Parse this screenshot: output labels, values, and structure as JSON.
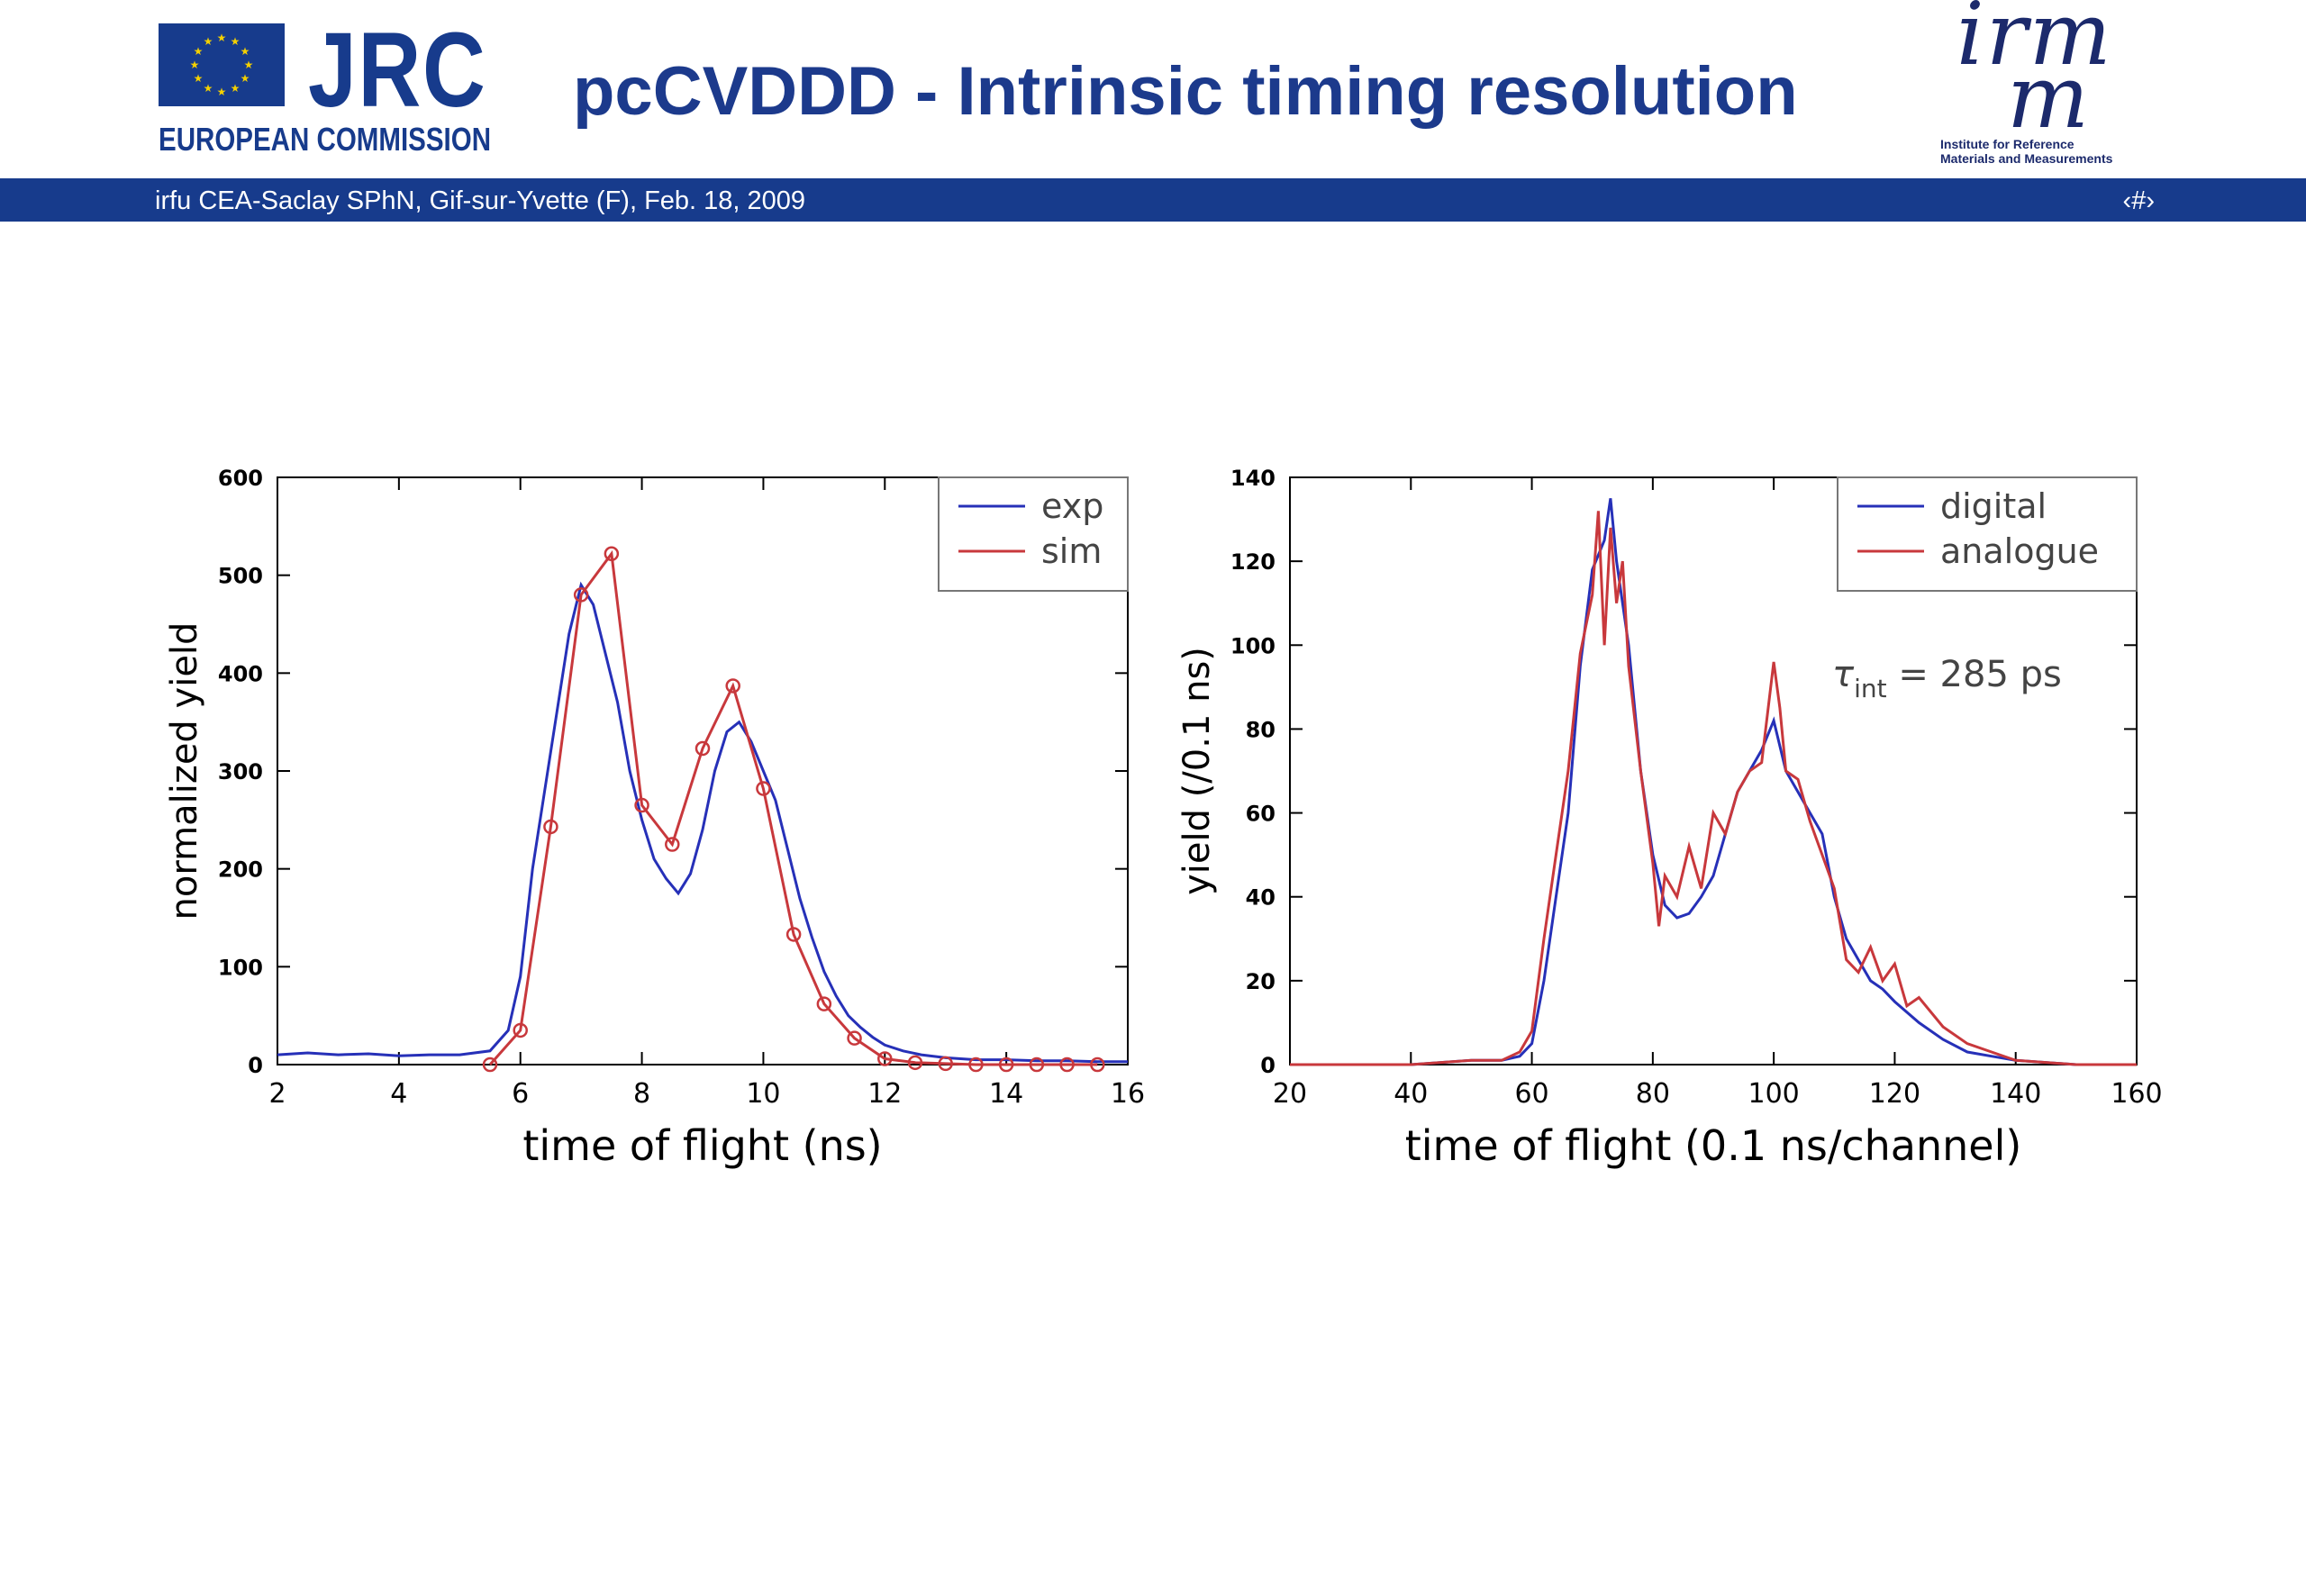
{
  "header": {
    "title": "pcCVDDD - Intrinsic timing resolution",
    "left_logo": {
      "name": "JRC",
      "subtitle": "EUROPEAN COMMISSION"
    },
    "right_logo": {
      "name": "irmm",
      "subtitle_line1": "Institute for Reference",
      "subtitle_line2": "Materials and Measurements"
    }
  },
  "footer_band": {
    "text": "irfu CEA-Saclay SPhN, Gif-sur-Yvette (F), Feb. 18, 2009",
    "page": "‹#›"
  },
  "colors": {
    "brand_blue": "#173b8c",
    "series_blue": "#2630b8",
    "series_red": "#c8383c"
  },
  "chart_data": [
    {
      "type": "line",
      "xlabel": "time of flight (ns)",
      "ylabel": "normalized yield",
      "xlim": [
        2,
        16
      ],
      "ylim": [
        0,
        600
      ],
      "xticks": [
        2,
        4,
        6,
        8,
        10,
        12,
        14,
        16
      ],
      "yticks": [
        0,
        100,
        200,
        300,
        400,
        500,
        600
      ],
      "legend_position": "top-right",
      "series": [
        {
          "name": "exp",
          "color": "#2630b8",
          "x": [
            2,
            2.5,
            3,
            3.5,
            4,
            4.5,
            5,
            5.5,
            5.8,
            6,
            6.2,
            6.4,
            6.6,
            6.8,
            7,
            7.2,
            7.4,
            7.6,
            7.8,
            8,
            8.2,
            8.4,
            8.6,
            8.8,
            9,
            9.2,
            9.4,
            9.6,
            9.8,
            10,
            10.2,
            10.4,
            10.6,
            10.8,
            11,
            11.2,
            11.4,
            11.6,
            11.8,
            12,
            12.3,
            12.6,
            13,
            13.5,
            14,
            14.5,
            15,
            15.5,
            16
          ],
          "y": [
            10,
            12,
            10,
            11,
            9,
            10,
            10,
            14,
            35,
            90,
            200,
            280,
            360,
            440,
            490,
            470,
            420,
            370,
            300,
            250,
            210,
            190,
            175,
            195,
            240,
            300,
            340,
            350,
            330,
            300,
            270,
            220,
            170,
            130,
            95,
            70,
            50,
            38,
            28,
            20,
            14,
            10,
            7,
            5,
            5,
            4,
            4,
            3,
            3
          ]
        },
        {
          "name": "sim",
          "color": "#c8383c",
          "x": [
            5.5,
            6,
            6.5,
            7,
            7.5,
            8,
            8.5,
            9,
            9.5,
            10,
            10.5,
            11,
            11.5,
            12,
            12.5,
            13,
            13.5,
            14,
            14.5,
            15,
            15.5
          ],
          "y": [
            0,
            35,
            243,
            480,
            522,
            265,
            225,
            323,
            387,
            282,
            133,
            62,
            27,
            6,
            2,
            1,
            0,
            0,
            0,
            0,
            0
          ]
        }
      ]
    },
    {
      "type": "line",
      "xlabel": "time of flight (0.1 ns/channel)",
      "ylabel": "yield (/0.1 ns)",
      "xlim": [
        20,
        160
      ],
      "ylim": [
        0,
        140
      ],
      "xticks": [
        20,
        40,
        60,
        80,
        100,
        120,
        140,
        160
      ],
      "yticks": [
        0,
        20,
        40,
        60,
        80,
        100,
        120,
        140
      ],
      "legend_position": "top-right",
      "annotation": {
        "symbol": "τ",
        "subscript": "int",
        "text": " = 285 ps"
      },
      "series": [
        {
          "name": "digital",
          "color": "#2630b8",
          "x": [
            20,
            30,
            40,
            50,
            55,
            58,
            60,
            62,
            64,
            66,
            68,
            70,
            72,
            73,
            74,
            76,
            78,
            80,
            82,
            84,
            86,
            88,
            90,
            92,
            94,
            96,
            98,
            100,
            102,
            104,
            106,
            108,
            110,
            112,
            114,
            116,
            118,
            120,
            124,
            128,
            132,
            136,
            140,
            150,
            160
          ],
          "y": [
            0,
            0,
            0,
            1,
            1,
            2,
            5,
            20,
            40,
            60,
            95,
            118,
            125,
            135,
            120,
            100,
            70,
            50,
            38,
            35,
            36,
            40,
            45,
            55,
            65,
            70,
            75,
            82,
            70,
            65,
            60,
            55,
            40,
            30,
            25,
            20,
            18,
            15,
            10,
            6,
            3,
            2,
            1,
            0,
            0
          ]
        },
        {
          "name": "analogue",
          "color": "#c8383c",
          "x": [
            20,
            30,
            40,
            50,
            55,
            58,
            60,
            62,
            64,
            66,
            68,
            70,
            71,
            72,
            73,
            74,
            75,
            76,
            78,
            80,
            81,
            82,
            84,
            86,
            88,
            90,
            92,
            94,
            96,
            98,
            100,
            101,
            102,
            104,
            106,
            108,
            110,
            112,
            114,
            116,
            118,
            120,
            122,
            124,
            128,
            132,
            136,
            140,
            150,
            160
          ],
          "y": [
            0,
            0,
            0,
            1,
            1,
            3,
            8,
            30,
            50,
            70,
            98,
            112,
            132,
            100,
            128,
            110,
            120,
            95,
            70,
            48,
            33,
            45,
            40,
            52,
            42,
            60,
            55,
            65,
            70,
            72,
            96,
            85,
            70,
            68,
            58,
            50,
            42,
            25,
            22,
            28,
            20,
            24,
            14,
            16,
            9,
            5,
            3,
            1,
            0,
            0
          ]
        }
      ]
    }
  ]
}
